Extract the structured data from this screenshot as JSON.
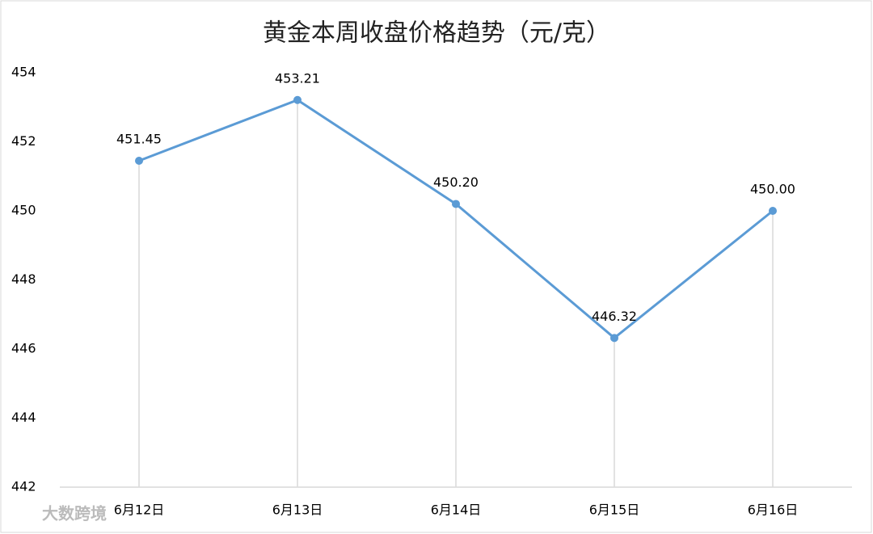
{
  "chart_data": {
    "type": "line",
    "title": "黄金本周收盘价格趋势（元/克）",
    "categories": [
      "6月12日",
      "6月13日",
      "6月14日",
      "6月15日",
      "6月16日"
    ],
    "values": [
      451.45,
      453.21,
      450.2,
      446.32,
      450.0
    ],
    "value_labels": [
      "451.45",
      "453.21",
      "450.20",
      "446.32",
      "450.00"
    ],
    "color": "#5b9bd5",
    "ylim": [
      442,
      454
    ],
    "yticks": [
      442,
      444,
      446,
      448,
      450,
      452,
      454
    ],
    "grid": false,
    "drop_lines": true,
    "watermark": "大数跨境"
  }
}
